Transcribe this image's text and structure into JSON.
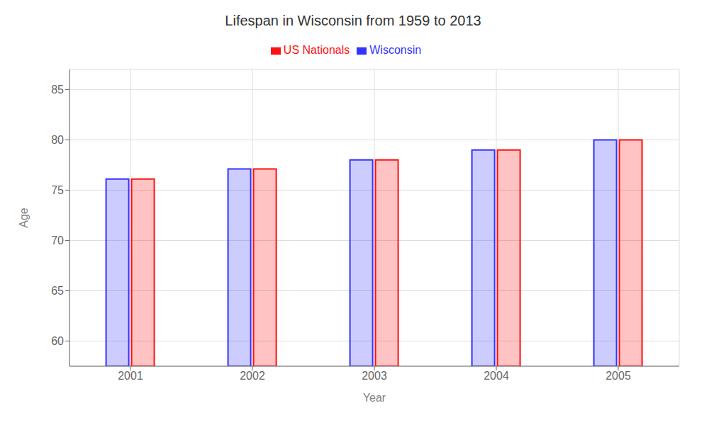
{
  "chart_data": {
    "type": "bar",
    "title": "Lifespan in Wisconsin from 1959 to 2013",
    "xlabel": "Year",
    "ylabel": "Age",
    "categories": [
      2001,
      2002,
      2003,
      2004,
      2005
    ],
    "series": [
      {
        "name": "Wisconsin",
        "color": "#3333FF",
        "values": [
          76.1,
          77.1,
          78.0,
          79.0,
          80.0
        ]
      },
      {
        "name": "US Nationals",
        "color": "#FF1111",
        "values": [
          76.1,
          77.1,
          78.0,
          79.0,
          80.0
        ]
      }
    ],
    "ylim": [
      57.5,
      87
    ],
    "yticks": [
      60,
      65,
      70,
      75,
      80,
      85
    ],
    "grid": true,
    "legend": "top"
  }
}
